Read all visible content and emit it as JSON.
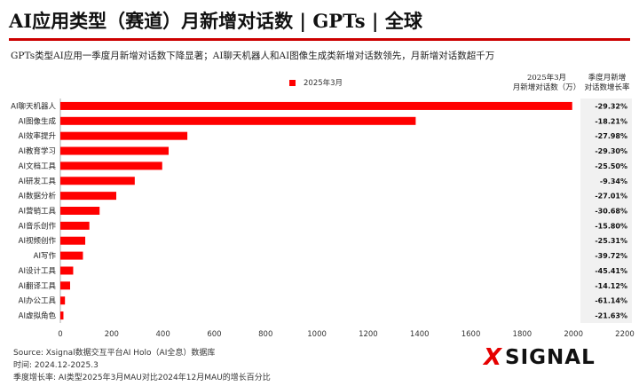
{
  "title": "AI应用类型（赛道）月新增对话数 | GPTs | 全球",
  "subtitle": "GPTs类型AI应用一季度月新增对话数下降显著；AI聊天机器人和AI图像生成类新增对话数领先，月新增对话数超千万",
  "column_headers": {
    "value_line1": "2025年3月",
    "value_line2": "月新增对话数（万）",
    "growth_line1": "季度月新增",
    "growth_line2": "对话数增长率"
  },
  "colors": {
    "bar": "#ff0000",
    "accent": "#cc0000",
    "panel": "#f1f1f1"
  },
  "chart_data": {
    "type": "bar",
    "orientation": "horizontal",
    "categories": [
      "AI聊天机器人",
      "AI图像生成",
      "AI效率提升",
      "AI教育学习",
      "AI文档工具",
      "AI研发工具",
      "AI数据分析",
      "AI营销工具",
      "AI音乐创作",
      "AI视频创作",
      "AI写作",
      "AI设计工具",
      "AI翻译工具",
      "AI办公工具",
      "AI虚拟角色"
    ],
    "series": [
      {
        "name": "2025年3月",
        "values": [
          1995,
          1385,
          495,
          422,
          397,
          290,
          218,
          153,
          113,
          97,
          88,
          50,
          38,
          18,
          12
        ]
      }
    ],
    "growth_rates": [
      "-29.32%",
      "-18.21%",
      "-27.98%",
      "-29.30%",
      "-25.50%",
      "-9.34%",
      "-27.01%",
      "-30.68%",
      "-15.80%",
      "-25.31%",
      "-39.72%",
      "-45.41%",
      "-14.12%",
      "-61.14%",
      "-21.63%"
    ],
    "xlim": [
      0,
      2200
    ],
    "xticks": [
      0,
      200,
      400,
      600,
      800,
      1000,
      1200,
      1400,
      1600,
      1800,
      2000,
      2200
    ],
    "xlabel": "",
    "ylabel": "",
    "legend": "top-center",
    "grid": false
  },
  "footer": {
    "source": "Source:   Xsignal数据交互平台AI Holo（AI全息）数据库",
    "period": "时间:   2024.12-2025.3",
    "note": "季度增长率:   AI类型2025年3月MAU对比2024年12月MAU的增长百分比"
  },
  "logo": {
    "mark": "X",
    "text": "SIGNAL"
  }
}
